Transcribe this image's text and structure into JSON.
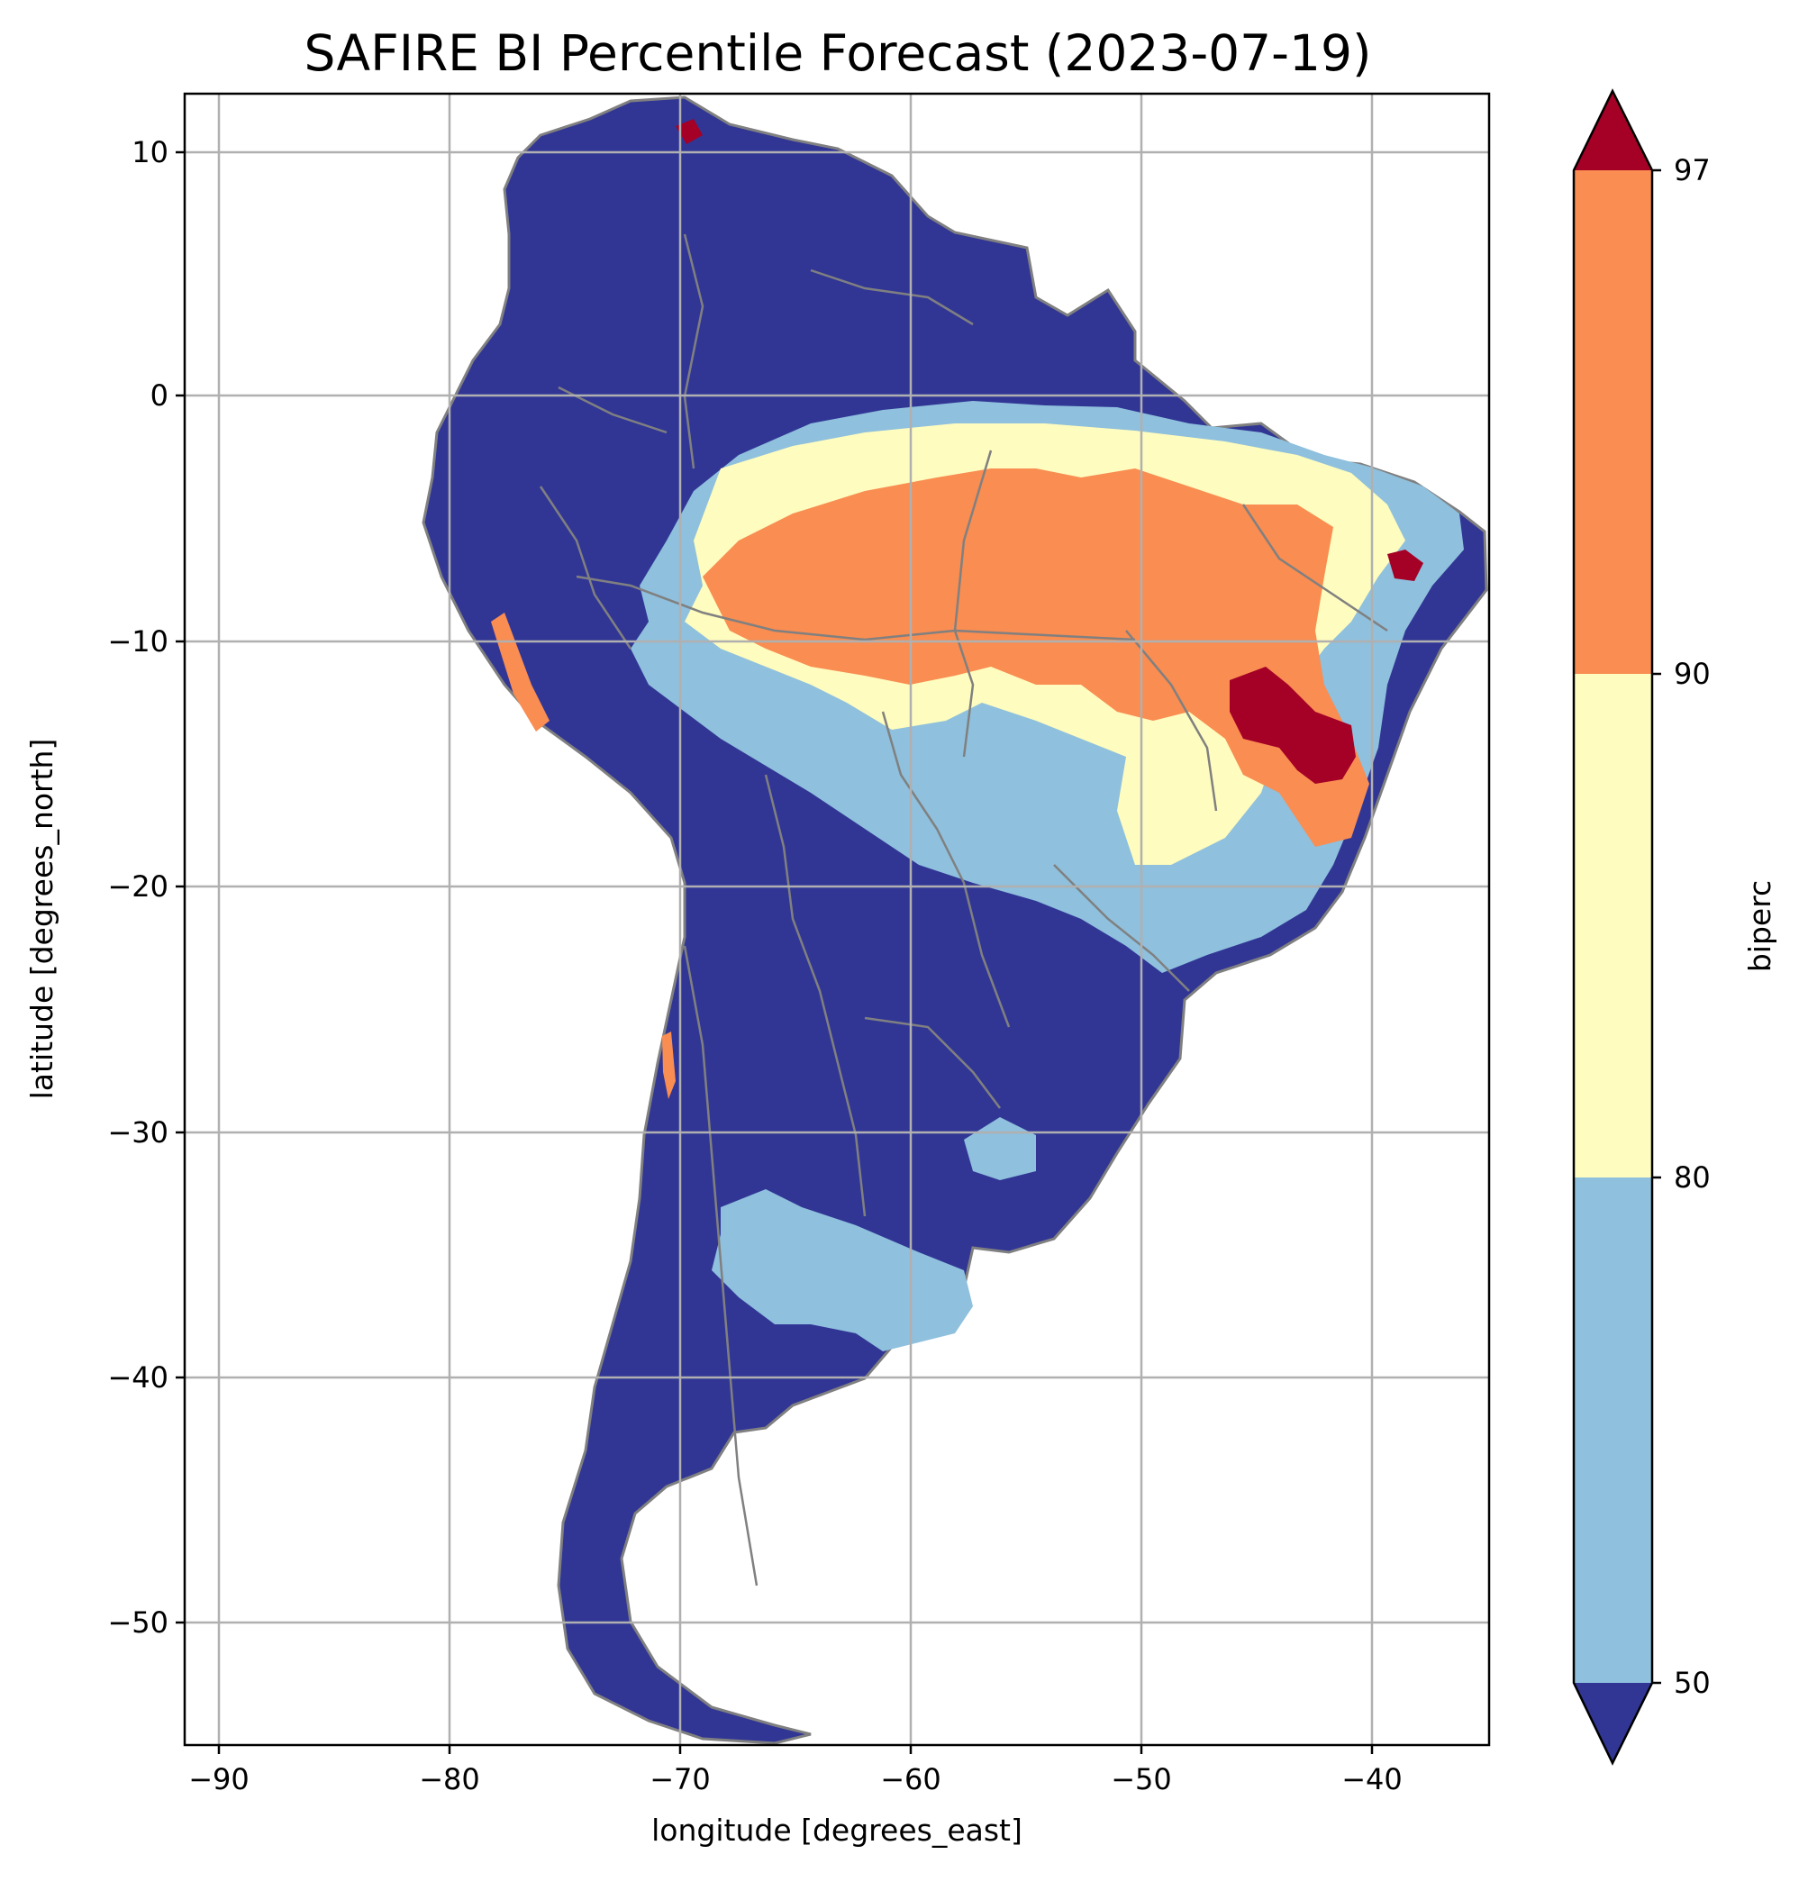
{
  "title": "SAFIRE BI Percentile Forecast (2023-07-19)",
  "map": {
    "xlabel": "longitude [degrees_east]",
    "ylabel": "latitude [degrees_north]",
    "x_range": [
      -91.6,
      -35.0
    ],
    "y_range": [
      -55.8,
      12.4
    ],
    "x_ticks": [
      -90,
      -80,
      -70,
      -60,
      -50,
      -40
    ],
    "x_tick_labels": [
      "−90",
      "−80",
      "−70",
      "−60",
      "−50",
      "−40"
    ],
    "y_ticks": [
      10,
      0,
      -10,
      -20,
      -30,
      -40,
      -50
    ],
    "y_tick_labels": [
      "10",
      "0",
      "−10",
      "−20",
      "−30",
      "−40",
      "−50"
    ],
    "grid": true,
    "colors": {
      "below_50": "#313695",
      "p50_80": "#8fc0dd",
      "p80_90": "#fefcbe",
      "p90_97": "#f98d52",
      "above_97": "#a50026",
      "borders": "#808080",
      "gridlines": "#b0b0b0"
    }
  },
  "colorbar": {
    "label": "biperc",
    "ticks": [
      50,
      80,
      90,
      97
    ],
    "tick_labels": [
      "50",
      "80",
      "90",
      "97"
    ],
    "extend": "both",
    "levels": [
      {
        "range": "<50",
        "color": "#313695"
      },
      {
        "range": "50-80",
        "color": "#8fc0dd"
      },
      {
        "range": "80-90",
        "color": "#fefcbe"
      },
      {
        "range": "90-97",
        "color": "#f98d52"
      },
      {
        "range": ">97",
        "color": "#a50026"
      }
    ]
  }
}
